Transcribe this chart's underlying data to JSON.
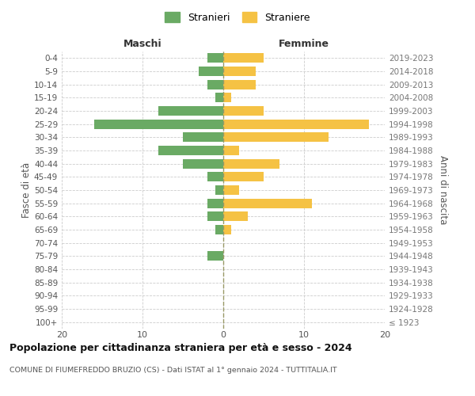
{
  "age_groups": [
    "100+",
    "95-99",
    "90-94",
    "85-89",
    "80-84",
    "75-79",
    "70-74",
    "65-69",
    "60-64",
    "55-59",
    "50-54",
    "45-49",
    "40-44",
    "35-39",
    "30-34",
    "25-29",
    "20-24",
    "15-19",
    "10-14",
    "5-9",
    "0-4"
  ],
  "birth_years": [
    "≤ 1923",
    "1924-1928",
    "1929-1933",
    "1934-1938",
    "1939-1943",
    "1944-1948",
    "1949-1953",
    "1954-1958",
    "1959-1963",
    "1964-1968",
    "1969-1973",
    "1974-1978",
    "1979-1983",
    "1984-1988",
    "1989-1993",
    "1994-1998",
    "1999-2003",
    "2004-2008",
    "2009-2013",
    "2014-2018",
    "2019-2023"
  ],
  "stranieri": [
    0,
    0,
    0,
    0,
    0,
    2,
    0,
    1,
    2,
    2,
    1,
    2,
    5,
    8,
    5,
    16,
    8,
    1,
    2,
    3,
    2
  ],
  "straniere": [
    0,
    0,
    0,
    0,
    0,
    0,
    0,
    1,
    3,
    11,
    2,
    5,
    7,
    2,
    13,
    18,
    5,
    1,
    4,
    4,
    5
  ],
  "stranieri_color": "#6aaa64",
  "straniere_color": "#f5c244",
  "background_color": "#ffffff",
  "grid_color": "#cccccc",
  "title": "Popolazione per cittadinanza straniera per età e sesso - 2024",
  "subtitle": "COMUNE DI FIUMEFREDDO BRUZIO (CS) - Dati ISTAT al 1° gennaio 2024 - TUTTITALIA.IT",
  "ylabel_left": "Fasce di età",
  "ylabel_right": "Anni di nascita",
  "xlabel_left": "Maschi",
  "xlabel_right": "Femmine",
  "xlim": 20,
  "legend_stranieri": "Stranieri",
  "legend_straniere": "Straniere"
}
